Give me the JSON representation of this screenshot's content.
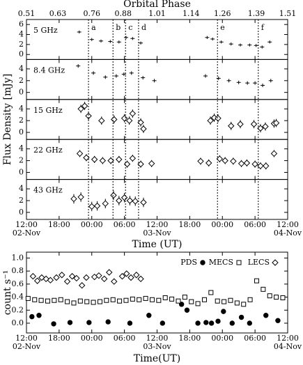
{
  "chart_data": [
    {
      "type": "scatter",
      "x2label": "Orbital Phase",
      "x2lim": [
        0.51,
        1.51
      ],
      "x2ticks": [
        0.51,
        0.63,
        0.76,
        0.88,
        1.01,
        1.14,
        1.26,
        1.39,
        1.51
      ],
      "xlabel": "Time (UT)",
      "ylabel": "Flux Density [mJy]",
      "xlim": [
        12,
        60
      ],
      "xticks": [
        {
          "value": 12,
          "label": "12:00"
        },
        {
          "value": 18,
          "label": "18:00"
        },
        {
          "value": 24,
          "label": "00:00"
        },
        {
          "value": 30,
          "label": "06:00"
        },
        {
          "value": 36,
          "label": "12:00"
        },
        {
          "value": 42,
          "label": "18:00"
        },
        {
          "value": 48,
          "label": "00:00"
        },
        {
          "value": 54,
          "label": "06:00"
        },
        {
          "value": 60,
          "label": "12:00"
        }
      ],
      "xdates": [
        {
          "value": 12,
          "label": "02-Nov"
        },
        {
          "value": 36,
          "label": "03-Nov"
        },
        {
          "value": 60,
          "label": "04-Nov"
        }
      ],
      "events": [
        {
          "label": "a",
          "value": 23.4
        },
        {
          "label": "b",
          "value": 27.9
        },
        {
          "label": "c",
          "value": 30.2
        },
        {
          "label": "d",
          "value": 32.6
        },
        {
          "label": "e",
          "value": 47.1
        },
        {
          "label": "f",
          "value": 54.6
        }
      ],
      "panels": [
        {
          "name": "5 GHz",
          "marker": "plus",
          "ylim": [
            -1,
            7
          ],
          "yticks": [
            0,
            2,
            4,
            6
          ],
          "x": [
            21.7,
            24.0,
            25.7,
            27.4,
            29.0,
            30.3,
            31.5,
            33.0,
            45.2,
            46.2,
            47.8,
            49.6,
            51.3,
            53.0,
            54.2,
            55.3,
            56.7
          ],
          "values": [
            4.5,
            3.0,
            2.7,
            2.6,
            2.5,
            3.4,
            3.2,
            2.3,
            3.4,
            3.1,
            2.5,
            2.1,
            1.9,
            1.9,
            1.8,
            1.5,
            2.5
          ],
          "errors": [
            0.3,
            0.3,
            0.3,
            0.3,
            0.3,
            0.3,
            0.3,
            0.3,
            0.3,
            0.3,
            0.3,
            0.3,
            0.3,
            0.3,
            0.3,
            0.3,
            0.3
          ]
        },
        {
          "name": "8.4 GHz",
          "marker": "plus",
          "ylim": [
            -1.2,
            5.6
          ],
          "yticks": [
            0,
            2,
            4
          ],
          "x": [
            21.5,
            24.3,
            26.5,
            28.5,
            29.9,
            31.3,
            33.4,
            35.5,
            44.9,
            47.3,
            49.2,
            51.0,
            52.6,
            54.0,
            55.4,
            56.9
          ],
          "values": [
            4.5,
            3.3,
            2.6,
            2.8,
            3.1,
            3.3,
            2.5,
            2.0,
            2.8,
            2.4,
            2.0,
            1.7,
            1.6,
            1.6,
            1.2,
            2.0
          ],
          "errors": [
            0.3,
            0.3,
            0.3,
            0.3,
            0.3,
            0.3,
            0.3,
            0.3,
            0.3,
            0.3,
            0.3,
            0.3,
            0.3,
            0.3,
            0.3,
            0.3
          ]
        },
        {
          "name": "15 GHz",
          "marker": "diamond",
          "ylim": [
            -1.2,
            5.6
          ],
          "yticks": [
            0,
            2,
            4
          ],
          "x": [
            22.0,
            22.7,
            23.4,
            25.8,
            28.1,
            30.0,
            30.9,
            31.5,
            33.0,
            33.5,
            45.8,
            46.5,
            47.2,
            49.6,
            51.3,
            53.8,
            55.0,
            55.9,
            57.5,
            57.9
          ],
          "values": [
            4.0,
            4.5,
            2.8,
            2.0,
            2.2,
            2.4,
            2.0,
            3.2,
            1.7,
            0.6,
            2.0,
            2.5,
            2.4,
            1.1,
            1.4,
            1.4,
            0.7,
            1.0,
            1.5,
            1.6
          ],
          "errors": [
            0.7,
            0.7,
            0.7,
            0.7,
            0.7,
            0.7,
            0.7,
            0.7,
            0.7,
            0.7,
            0.7,
            0.7,
            0.7,
            0.7,
            0.7,
            0.7,
            0.7,
            0.7,
            0.7,
            0.7
          ]
        },
        {
          "name": "22 GHz",
          "marker": "diamond",
          "ylim": [
            -1.2,
            5.6
          ],
          "yticks": [
            0,
            2,
            4
          ],
          "x": [
            21.8,
            23.0,
            24.5,
            26.0,
            27.5,
            29.0,
            30.5,
            31.5,
            33.0,
            35.0,
            44.0,
            45.5,
            47.5,
            48.5,
            50.0,
            51.5,
            52.5,
            54.0,
            55.0,
            56.0,
            57.5
          ],
          "values": [
            3.2,
            2.5,
            2.2,
            2.0,
            2.0,
            2.2,
            1.4,
            2.4,
            1.4,
            1.5,
            1.9,
            1.6,
            2.3,
            2.0,
            1.9,
            1.5,
            1.6,
            1.4,
            1.1,
            1.1,
            3.2
          ],
          "errors": [
            0.6,
            0.6,
            0.6,
            0.6,
            0.6,
            0.6,
            0.6,
            0.6,
            0.6,
            0.6,
            0.6,
            0.6,
            0.6,
            0.6,
            0.6,
            0.6,
            0.6,
            0.6,
            0.6,
            0.6,
            0.6
          ]
        },
        {
          "name": "43 GHz",
          "marker": "diamond",
          "ylim": [
            -1.2,
            5.6
          ],
          "yticks": [
            0,
            2,
            4
          ],
          "x": [
            20.7,
            22.0,
            24.0,
            25.0,
            26.5,
            28.0,
            29.0,
            30.0,
            31.0,
            32.0,
            33.5
          ],
          "values": [
            2.3,
            2.6,
            1.0,
            1.1,
            1.5,
            2.9,
            2.0,
            2.5,
            2.0,
            1.9,
            1.7
          ],
          "errors": [
            0.8,
            0.8,
            0.8,
            0.8,
            0.8,
            0.8,
            0.8,
            0.8,
            0.8,
            0.8,
            0.8
          ]
        }
      ]
    },
    {
      "type": "scatter",
      "xlabel": "Time(UT)",
      "ylabel": "count s⁻¹",
      "xlim": [
        12,
        60
      ],
      "ylim": [
        -0.15,
        1.09
      ],
      "xticks": [
        {
          "value": 12,
          "label": "12:00"
        },
        {
          "value": 18,
          "label": "18:00"
        },
        {
          "value": 24,
          "label": "00:00"
        },
        {
          "value": 30,
          "label": "06:00"
        },
        {
          "value": 36,
          "label": "12:00"
        },
        {
          "value": 42,
          "label": "18:00"
        },
        {
          "value": 48,
          "label": "00:00"
        },
        {
          "value": 54,
          "label": "06:00"
        },
        {
          "value": 60,
          "label": "12:00"
        }
      ],
      "xdates": [
        {
          "value": 12,
          "label": "02-Nov"
        },
        {
          "value": 36,
          "label": "03-Nov"
        },
        {
          "value": 60,
          "label": "04-Nov"
        }
      ],
      "yticks": [
        {
          "value": 0,
          "label": "0.0"
        },
        0.2,
        0.4,
        0.6,
        0.8,
        {
          "value": 1,
          "label": "1.0"
        }
      ],
      "legend": "upper right",
      "series": [
        {
          "name": "PDS",
          "marker": "circle",
          "color": "#000000",
          "x": [
            13.0,
            14.3,
            17.0,
            20.0,
            23.5,
            27.0,
            31.0,
            34.5,
            37.0,
            40.5,
            41.5,
            43.5,
            45.0,
            46.0,
            47.2,
            48.2,
            49.8,
            51.5,
            53.0,
            56.0,
            58.2
          ],
          "values": [
            0.1,
            0.12,
            -0.01,
            0.01,
            0.01,
            0.02,
            0.0,
            0.12,
            0.0,
            0.29,
            0.2,
            0.0,
            0.01,
            0.0,
            0.03,
            0.18,
            0.0,
            0.09,
            0.0,
            0.12,
            0.04
          ]
        },
        {
          "name": "MECS",
          "marker": "square",
          "color": "#000000",
          "x": [
            12.3,
            13.5,
            14.7,
            15.9,
            17.1,
            18.3,
            19.5,
            20.7,
            21.9,
            23.1,
            24.3,
            25.5,
            26.7,
            27.9,
            29.1,
            30.3,
            31.5,
            32.7,
            33.9,
            35.1,
            36.3,
            37.5,
            38.7,
            39.9,
            41.1,
            42.3,
            43.5,
            44.7,
            45.9,
            47.1,
            48.3,
            49.5,
            50.7,
            51.9,
            53.1,
            54.3,
            55.5,
            56.7,
            57.9,
            59.1
          ],
          "values": [
            0.38,
            0.36,
            0.35,
            0.34,
            0.35,
            0.36,
            0.33,
            0.31,
            0.34,
            0.33,
            0.32,
            0.33,
            0.35,
            0.36,
            0.34,
            0.35,
            0.37,
            0.36,
            0.38,
            0.36,
            0.35,
            0.39,
            0.37,
            0.34,
            0.4,
            0.33,
            0.3,
            0.36,
            0.47,
            0.34,
            0.33,
            0.35,
            0.31,
            0.29,
            0.36,
            0.65,
            0.52,
            0.42,
            0.4,
            0.39
          ]
        },
        {
          "name": "LECS",
          "marker": "diamond",
          "color": "#000000",
          "x": [
            13.2,
            14.0,
            14.8,
            15.6,
            16.4,
            17.5,
            18.5,
            19.5,
            20.4,
            21.2,
            22.2,
            23.0,
            24.5,
            25.3,
            26.3,
            27.2,
            28.1,
            29.6,
            30.4,
            31.2,
            32.2,
            33.0
          ],
          "values": [
            0.72,
            0.65,
            0.7,
            0.68,
            0.66,
            0.7,
            0.74,
            0.64,
            0.72,
            0.69,
            0.58,
            0.7,
            0.71,
            0.73,
            0.68,
            0.78,
            0.64,
            0.72,
            0.76,
            0.7,
            0.74,
            0.68
          ]
        }
      ]
    }
  ]
}
